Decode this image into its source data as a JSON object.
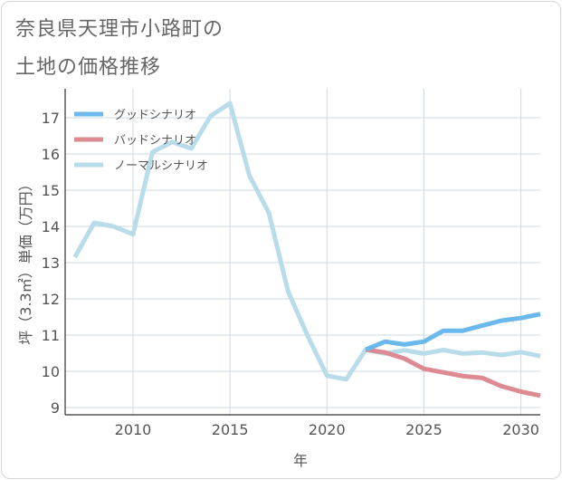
{
  "title_line1": "奈良県天理市小路町の",
  "title_line2": "土地の価格推移",
  "chart_data": {
    "type": "line",
    "xlabel": "年",
    "ylabel": "坪（3.3㎡）単価（万円）",
    "xlim": [
      2006.5,
      2031
    ],
    "ylim": [
      8.8,
      17.8
    ],
    "xticks": [
      2010,
      2015,
      2020,
      2025,
      2030
    ],
    "yticks": [
      9,
      10,
      11,
      12,
      13,
      14,
      15,
      16,
      17
    ],
    "grid": true,
    "legend_position": "top-left",
    "series": [
      {
        "name": "グッドシナリオ",
        "color": "#6bb8ec",
        "x": [
          2022,
          2023,
          2024,
          2025,
          2026,
          2027,
          2028,
          2029,
          2030,
          2031
        ],
        "y": [
          10.6,
          10.82,
          10.74,
          10.82,
          11.12,
          11.12,
          11.26,
          11.4,
          11.47,
          11.58
        ]
      },
      {
        "name": "バッドシナリオ",
        "color": "#dd8a93",
        "x": [
          2022,
          2023,
          2024,
          2025,
          2026,
          2027,
          2028,
          2029,
          2030,
          2031
        ],
        "y": [
          10.6,
          10.52,
          10.35,
          10.07,
          9.97,
          9.87,
          9.82,
          9.59,
          9.44,
          9.33
        ]
      },
      {
        "name": "ノーマルシナリオ",
        "color": "#b8dcea",
        "x": [
          2007,
          2008,
          2009,
          2010,
          2011,
          2012,
          2013,
          2014,
          2015,
          2016,
          2017,
          2018,
          2019,
          2020,
          2021,
          2022,
          2023,
          2024,
          2025,
          2026,
          2027,
          2028,
          2029,
          2030,
          2031
        ],
        "y": [
          13.15,
          14.1,
          14.0,
          13.78,
          16.05,
          16.33,
          16.15,
          17.05,
          17.4,
          15.4,
          14.38,
          12.2,
          10.98,
          9.88,
          9.78,
          10.6,
          10.49,
          10.58,
          10.49,
          10.59,
          10.49,
          10.52,
          10.45,
          10.53,
          10.42
        ]
      }
    ]
  }
}
